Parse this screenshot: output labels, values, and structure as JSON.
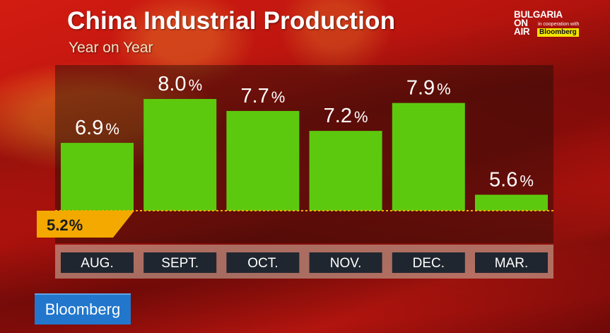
{
  "header": {
    "title": "China Industrial Production",
    "subtitle": "Year on Year"
  },
  "logos": {
    "top_right_lines": [
      "BULGARIA",
      "ON",
      "AIR"
    ],
    "top_right_coop": "in cooperation with",
    "top_right_bloomberg": "Bloomberg",
    "bottom_left": "Bloomberg"
  },
  "colors": {
    "bar": "#5dc90e",
    "reference": "#f3a900",
    "category_box": "#20262f",
    "logo_blue": "#2277cc"
  },
  "chart_data": {
    "type": "bar",
    "title": "China Industrial Production",
    "subtitle": "Year on Year",
    "categories": [
      "AUG.",
      "SEPT.",
      "OCT.",
      "NOV.",
      "DEC.",
      "MAR."
    ],
    "values": [
      6.9,
      8.0,
      7.7,
      7.2,
      7.9,
      5.6
    ],
    "value_labels": [
      "6.9",
      "8.0",
      "7.7",
      "7.2",
      "7.9",
      "5.6"
    ],
    "unit": "%",
    "reference_line": {
      "value": 5.2,
      "label": "5.2",
      "unit": "%"
    },
    "ylim": [
      5.2,
      8.0
    ],
    "xlabel": "",
    "ylabel": "",
    "grid": false,
    "legend": "none"
  }
}
